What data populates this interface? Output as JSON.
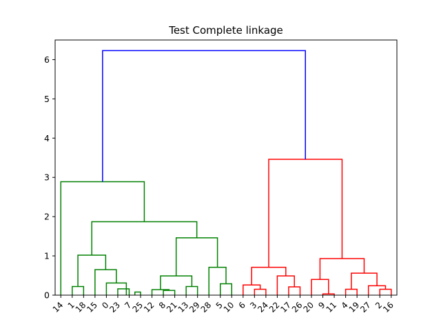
{
  "chart_data": {
    "type": "dendrogram",
    "title": "Test Complete linkage",
    "xlabel": "",
    "ylabel": "",
    "ylim": [
      0,
      6.5
    ],
    "y_ticks": [
      0,
      1,
      2,
      3,
      4,
      5,
      6
    ],
    "grid": false,
    "leaf_labels": [
      "14",
      "1",
      "18",
      "15",
      "0",
      "23",
      "7",
      "25",
      "12",
      "8",
      "21",
      "13",
      "29",
      "28",
      "5",
      "10",
      "6",
      "3",
      "24",
      "22",
      "17",
      "26",
      "20",
      "9",
      "11",
      "4",
      "19",
      "27",
      "2",
      "16"
    ],
    "colors": {
      "cluster_a": "#008000",
      "cluster_b": "#ff0000",
      "above_threshold": "#0000ff"
    },
    "links": [
      {
        "left": 1,
        "right": 2,
        "height": 0.22,
        "color": "cluster_a"
      },
      {
        "left": 5,
        "right": 6,
        "height": 0.16,
        "color": "cluster_a"
      },
      {
        "left": 6.5,
        "right": 7,
        "height": 0.08,
        "color": "cluster_a"
      },
      {
        "left": 4,
        "right": 5.75,
        "height": 0.31,
        "color": "cluster_a"
      },
      {
        "left": 3,
        "right": 4.875,
        "height": 0.65,
        "color": "cluster_a"
      },
      {
        "left": 1.5,
        "right": 3.9375,
        "height": 1.02,
        "color": "cluster_a"
      },
      {
        "left": 9,
        "right": 10,
        "height": 0.12,
        "color": "cluster_a"
      },
      {
        "left": 8,
        "right": 9.5,
        "height": 0.14,
        "color": "cluster_a"
      },
      {
        "left": 11,
        "right": 12,
        "height": 0.22,
        "color": "cluster_a"
      },
      {
        "left": 8.75,
        "right": 11.5,
        "height": 0.49,
        "color": "cluster_a"
      },
      {
        "left": 14,
        "right": 15,
        "height": 0.29,
        "color": "cluster_a"
      },
      {
        "left": 13,
        "right": 14.5,
        "height": 0.71,
        "color": "cluster_a"
      },
      {
        "left": 10.125,
        "right": 13.75,
        "height": 1.46,
        "color": "cluster_a"
      },
      {
        "left": 2.71875,
        "right": 11.9375,
        "height": 1.87,
        "color": "cluster_a"
      },
      {
        "left": 0,
        "right": 7.328125,
        "height": 2.89,
        "color": "cluster_a"
      },
      {
        "left": 17,
        "right": 18,
        "height": 0.15,
        "color": "cluster_b"
      },
      {
        "left": 16,
        "right": 17.5,
        "height": 0.26,
        "color": "cluster_b"
      },
      {
        "left": 20,
        "right": 21,
        "height": 0.21,
        "color": "cluster_b"
      },
      {
        "left": 19,
        "right": 20.5,
        "height": 0.49,
        "color": "cluster_b"
      },
      {
        "left": 16.75,
        "right": 19.75,
        "height": 0.71,
        "color": "cluster_b"
      },
      {
        "left": 23,
        "right": 24,
        "height": 0.03,
        "color": "cluster_b"
      },
      {
        "left": 22,
        "right": 23.5,
        "height": 0.4,
        "color": "cluster_b"
      },
      {
        "left": 25,
        "right": 26,
        "height": 0.15,
        "color": "cluster_b"
      },
      {
        "left": 28,
        "right": 29,
        "height": 0.15,
        "color": "cluster_b"
      },
      {
        "left": 27,
        "right": 28.5,
        "height": 0.24,
        "color": "cluster_b"
      },
      {
        "left": 25.5,
        "right": 27.75,
        "height": 0.56,
        "color": "cluster_b"
      },
      {
        "left": 22.75,
        "right": 26.625,
        "height": 0.93,
        "color": "cluster_b"
      },
      {
        "left": 18.25,
        "right": 24.6875,
        "height": 3.46,
        "color": "cluster_b"
      },
      {
        "left": 3.6640625,
        "right": 21.46875,
        "height": 6.23,
        "color": "above_threshold"
      }
    ]
  }
}
